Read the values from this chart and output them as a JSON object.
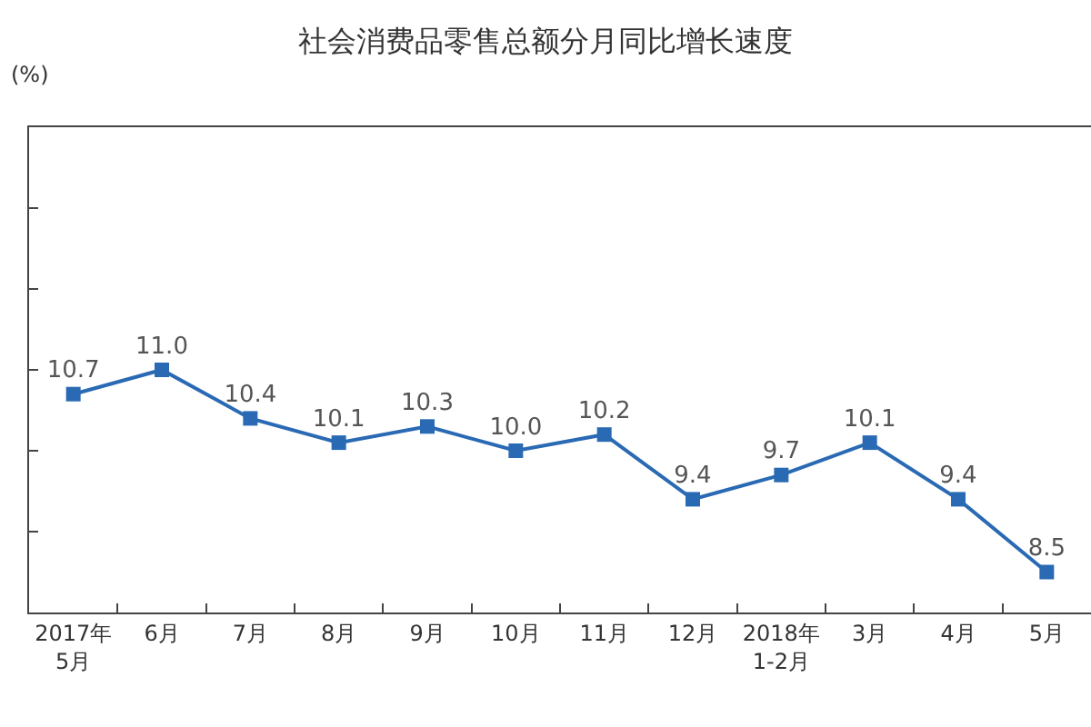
{
  "chart_data": {
    "type": "line",
    "title": "社会消费品零售总额分月同比增长速度",
    "ylabel": "(%)",
    "categories": [
      "2017年\n5月",
      "6月",
      "7月",
      "8月",
      "9月",
      "10月",
      "11月",
      "12月",
      "2018年\n1-2月",
      "3月",
      "4月",
      "5月"
    ],
    "series": [
      {
        "color": "#2a6ab4",
        "values": [
          10.7,
          11.0,
          10.4,
          10.1,
          10.3,
          10.0,
          10.2,
          9.4,
          9.7,
          10.1,
          9.4,
          8.5
        ],
        "value_labels": [
          "10.7",
          "11.0",
          "10.4",
          "10.1",
          "10.3",
          "10.0",
          "10.2",
          "9.4",
          "9.7",
          "10.1",
          "9.4",
          "8.5"
        ]
      }
    ],
    "ylim": [
      8,
      14
    ],
    "yticks": [
      {
        "value": 8,
        "label": null
      },
      {
        "value": 9,
        "label": null
      },
      {
        "value": 10,
        "label": null
      },
      {
        "value": 11,
        "label": null
      },
      {
        "value": 12,
        "label": null
      },
      {
        "value": 13,
        "label": null
      },
      {
        "value": 14,
        "label": null
      }
    ],
    "tick_labels": "x",
    "marker": "square",
    "line_style": "solid",
    "grid": false
  }
}
